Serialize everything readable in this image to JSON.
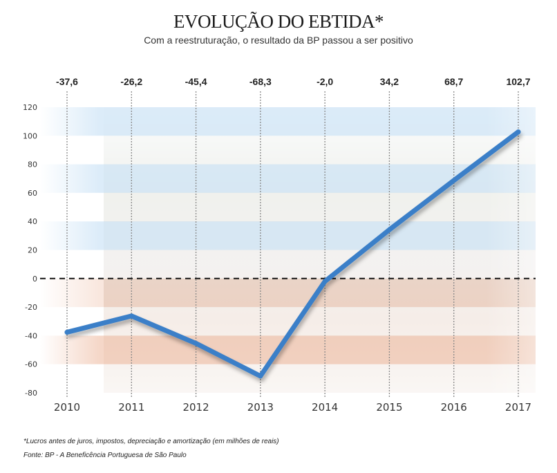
{
  "chart_data": {
    "type": "line",
    "title": "EVOLUÇÃO DO EBTIDA*",
    "subtitle": "Com a reestruturação, o resultado da BP passou a ser positivo",
    "categories": [
      "2010",
      "2011",
      "2012",
      "2013",
      "2014",
      "2015",
      "2016",
      "2017"
    ],
    "values": [
      -37.6,
      -26.2,
      -45.4,
      -68.3,
      -2.0,
      34.2,
      68.7,
      102.7
    ],
    "value_labels": [
      "-37,6",
      "-26,2",
      "-45,4",
      "-68,3",
      "-2,0",
      "34,2",
      "68,7",
      "102,7"
    ],
    "y_ticks": [
      120,
      100,
      80,
      60,
      40,
      20,
      0,
      -20,
      -40,
      -60,
      -80
    ],
    "ylim": [
      -80,
      120
    ],
    "xlabel": "",
    "ylabel": "",
    "grid": "vertical dotted lines; zero line dashed",
    "line_color": "#3a7fc8",
    "positive_band_color": "#d6e9f8",
    "negative_band_color": "#f1c9b5",
    "footnote": "*Lucros antes de juros, impostos, depreciação e amortização (em milhões de reais)",
    "source": "Fonte: BP - A Beneficência Portuguesa de São Paulo"
  }
}
